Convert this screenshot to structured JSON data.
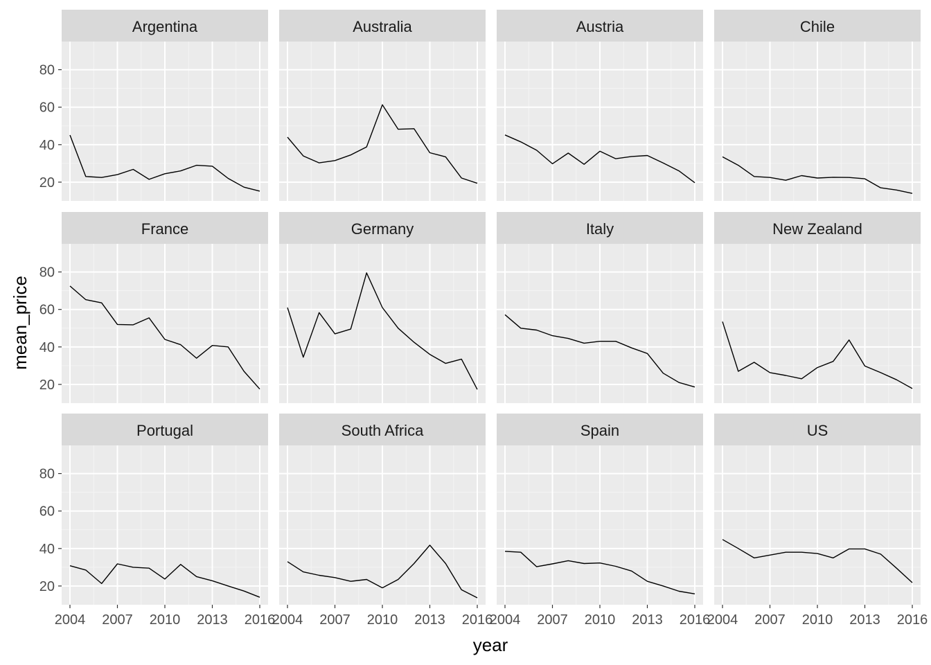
{
  "chart_data": {
    "type": "line",
    "layout": "facet-wrap 4x3",
    "xlabel": "year",
    "ylabel": "mean_price",
    "xlim": [
      2004,
      2016
    ],
    "ylim": [
      10,
      95
    ],
    "x_ticks": [
      2004,
      2007,
      2010,
      2013,
      2016
    ],
    "x_tick_labels": [
      "2004",
      "2007",
      "2010",
      "2013",
      "2016"
    ],
    "y_ticks": [
      20,
      40,
      60,
      80
    ],
    "y_tick_labels": [
      "20",
      "40",
      "60",
      "80"
    ],
    "grid": true,
    "x": [
      2004,
      2005,
      2006,
      2007,
      2008,
      2009,
      2010,
      2011,
      2012,
      2013,
      2014,
      2015,
      2016
    ],
    "panels": [
      {
        "title": "Argentina",
        "values": [
          45.1,
          23.0,
          22.5,
          24.0,
          26.8,
          21.5,
          24.5,
          26.0,
          29.0,
          28.5,
          22.0,
          17.3,
          15.2
        ]
      },
      {
        "title": "Australia",
        "values": [
          44.0,
          34.0,
          30.3,
          31.5,
          34.5,
          38.8,
          61.3,
          48.2,
          48.5,
          35.7,
          33.5,
          22.2,
          19.4
        ]
      },
      {
        "title": "Austria",
        "values": [
          45.2,
          41.5,
          37.0,
          29.8,
          35.5,
          29.5,
          36.5,
          32.5,
          33.7,
          34.2,
          30.2,
          26.0,
          19.7
        ]
      },
      {
        "title": "Chile",
        "values": [
          33.5,
          29.0,
          23.0,
          22.5,
          21.0,
          23.5,
          22.2,
          22.6,
          22.5,
          21.8,
          17.0,
          15.8,
          14.0
        ]
      },
      {
        "title": "France",
        "values": [
          72.5,
          65.2,
          63.5,
          52.0,
          51.8,
          55.5,
          44.0,
          41.2,
          34.0,
          40.8,
          40.0,
          27.0,
          17.5
        ]
      },
      {
        "title": "Germany",
        "values": [
          61.0,
          34.5,
          58.3,
          47.0,
          49.5,
          79.5,
          61.0,
          50.0,
          42.5,
          36.0,
          31.2,
          33.5,
          17.3
        ]
      },
      {
        "title": "Italy",
        "values": [
          57.2,
          50.0,
          49.0,
          46.0,
          44.5,
          42.0,
          43.0,
          43.0,
          39.5,
          36.5,
          26.0,
          21.0,
          18.6
        ]
      },
      {
        "title": "New Zealand",
        "values": [
          53.5,
          27.0,
          31.8,
          26.3,
          24.8,
          23.0,
          29.0,
          32.3,
          43.7,
          29.8,
          26.3,
          22.5,
          17.8
        ]
      },
      {
        "title": "Portugal",
        "values": [
          30.8,
          28.5,
          21.3,
          31.8,
          30.0,
          29.5,
          23.7,
          31.5,
          25.0,
          22.8,
          20.0,
          17.3,
          14.0
        ]
      },
      {
        "title": "South Africa",
        "values": [
          33.0,
          27.5,
          25.7,
          24.5,
          22.5,
          23.5,
          19.0,
          23.5,
          32.0,
          41.8,
          32.0,
          18.0,
          13.7
        ]
      },
      {
        "title": "Spain",
        "values": [
          38.5,
          38.0,
          30.3,
          31.8,
          33.5,
          32.0,
          32.3,
          30.5,
          28.0,
          22.5,
          20.0,
          17.2,
          15.8
        ]
      },
      {
        "title": "US",
        "values": [
          44.8,
          40.0,
          35.0,
          36.5,
          38.0,
          38.0,
          37.3,
          35.0,
          39.8,
          39.8,
          37.0,
          29.5,
          21.8
        ]
      }
    ],
    "colors": {
      "panel_bg": "#ebebeb",
      "strip_bg": "#d9d9d9",
      "grid_major": "#ffffff",
      "grid_minor": "#f4f4f4",
      "line": "#000000",
      "tick": "#333333"
    }
  }
}
